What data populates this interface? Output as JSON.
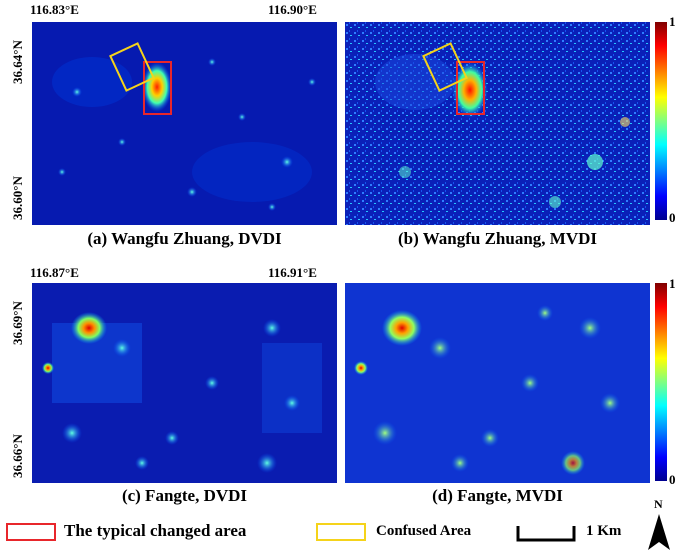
{
  "top": {
    "lon_left": "116.83°E",
    "lon_right": "116.90°E",
    "lat_top": "36.64°N",
    "lat_bottom": "36.60°N",
    "caption_a": "(a) Wangfu Zhuang, DVDI",
    "caption_b": "(b) Wangfu Zhuang, MVDI"
  },
  "bottom": {
    "lon_left": "116.87°E",
    "lon_right": "116.91°E",
    "lat_top": "36.69°N",
    "lat_bottom": "36.66°N",
    "caption_c": "(c) Fangte, DVDI",
    "caption_d": "(d) Fangte, MVDI"
  },
  "colorbar": {
    "max_label": "1",
    "min_label": "0"
  },
  "legend": {
    "changed_label": "The typical changed area",
    "confused_label": "Confused Area",
    "scale_label": "1 Km",
    "north_label": "N",
    "changed_color": "#e8262b",
    "confused_color": "#f5d31a"
  },
  "colors": {
    "deep_blue": "#00109e",
    "background": "#ffffff"
  }
}
